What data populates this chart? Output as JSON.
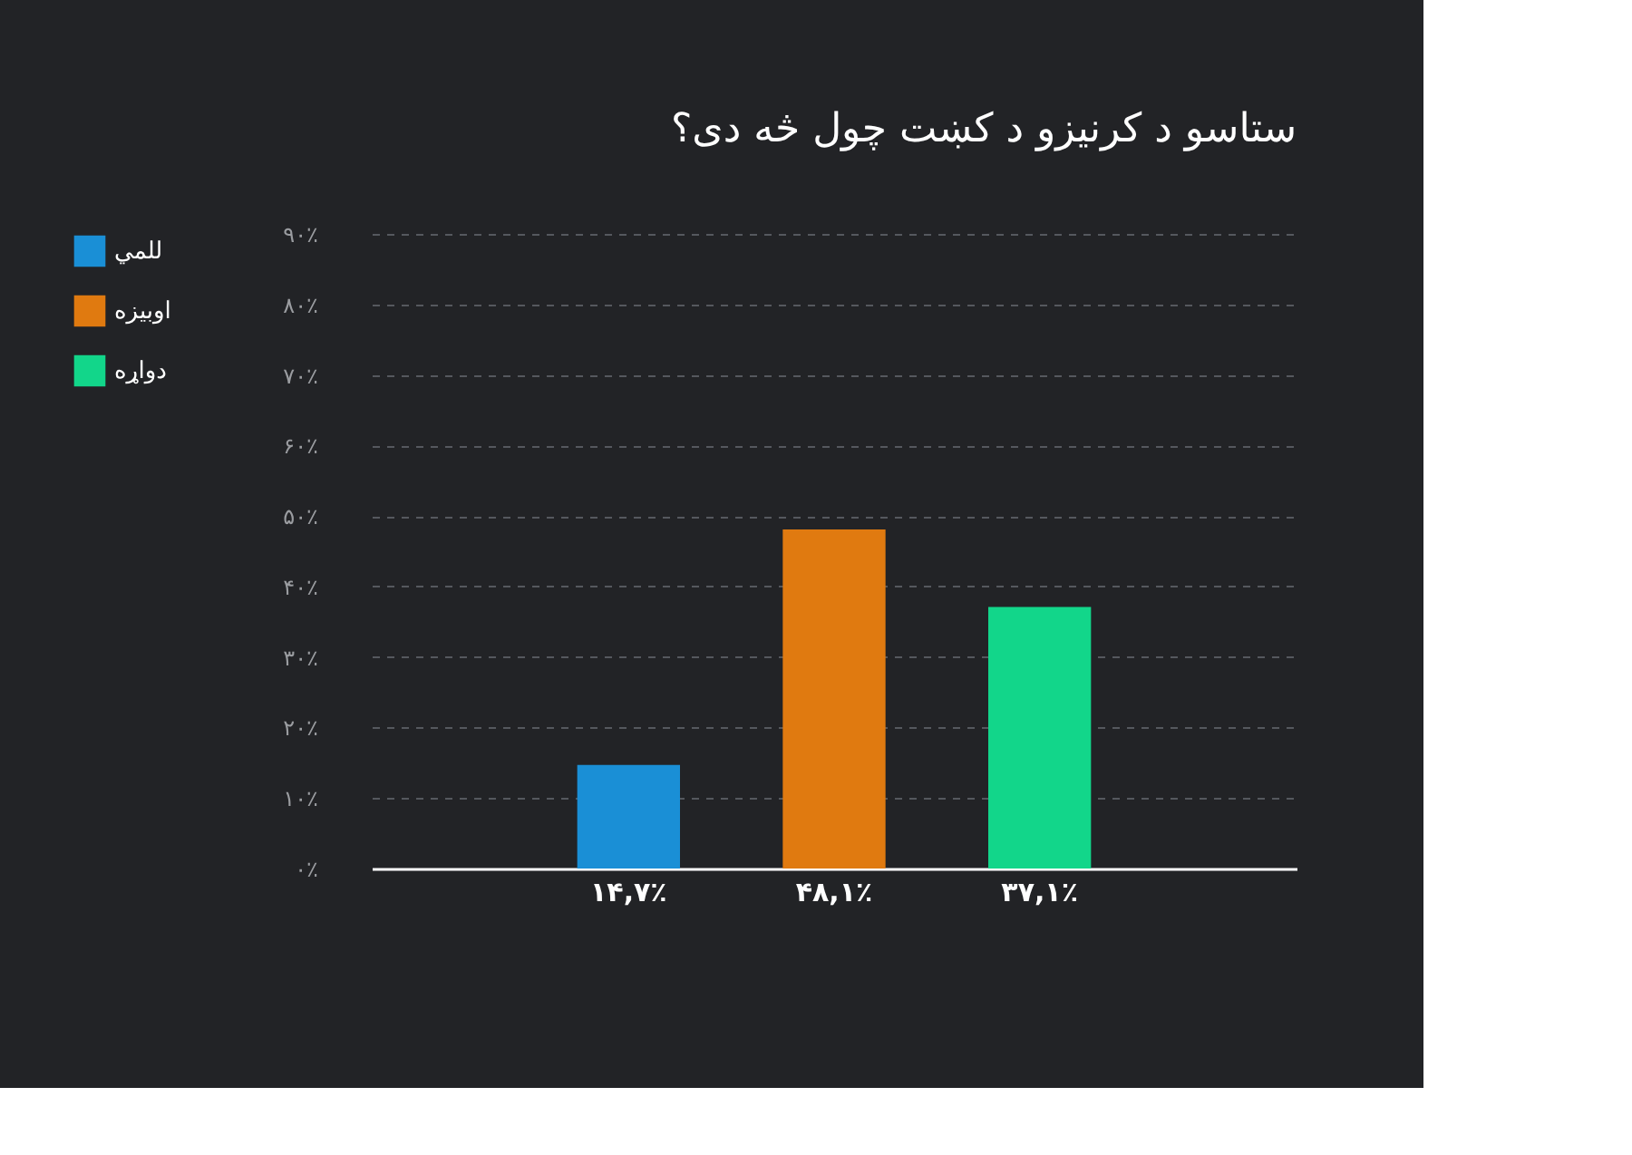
{
  "chart_data": {
    "type": "bar",
    "title": "ستاسو د کرنيزو د کښت چول څه دی؟",
    "categories": [
      null,
      null,
      null
    ],
    "series": [
      {
        "name": "للمي",
        "color": "#1a8fd6",
        "values": [
          14.7,
          null,
          null
        ],
        "value_labels": [
          "۱۴,۷٪",
          null,
          null
        ]
      },
      {
        "name": "اوبيزه",
        "color": "#e07a10",
        "values": [
          null,
          48.1,
          null
        ],
        "value_labels": [
          null,
          "۴۸,۱٪",
          null
        ]
      },
      {
        "name": "دواړه",
        "color": "#12d68a",
        "values": [
          null,
          null,
          37.1
        ],
        "value_labels": [
          null,
          null,
          "۳۷,۱٪"
        ]
      }
    ],
    "ylim": [
      0,
      90
    ],
    "yticks": [
      {
        "value": 0,
        "label": "۰٪"
      },
      {
        "value": 10,
        "label": "۱۰٪"
      },
      {
        "value": 20,
        "label": "۲۰٪"
      },
      {
        "value": 30,
        "label": "۳۰٪"
      },
      {
        "value": 40,
        "label": "۴۰٪"
      },
      {
        "value": 50,
        "label": "۵۰٪"
      },
      {
        "value": 60,
        "label": "۶۰٪"
      },
      {
        "value": 70,
        "label": "۷۰٪"
      },
      {
        "value": 80,
        "label": "۸۰٪"
      },
      {
        "value": 90,
        "label": "۹۰٪"
      }
    ],
    "grid": "y",
    "legend": "left"
  }
}
